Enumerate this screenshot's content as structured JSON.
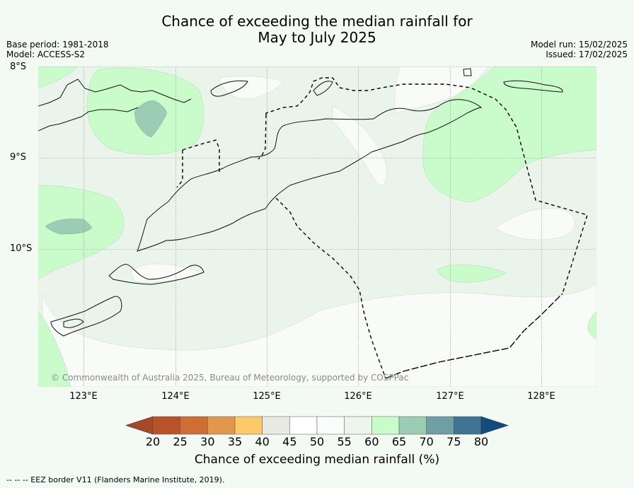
{
  "title": {
    "line1": "Chance of exceeding the median rainfall for",
    "line2": "May to July 2025"
  },
  "meta_left": {
    "base_period": "Base period: 1981-2018",
    "model": "Model: ACCESS-S2"
  },
  "meta_right": {
    "model_run": "Model run: 15/02/2025",
    "issued": "Issued: 17/02/2025"
  },
  "latitude_labels": [
    "8°S",
    "9°S",
    "10°S"
  ],
  "longitude_labels": [
    "123°E",
    "124°E",
    "125°E",
    "126°E",
    "127°E",
    "128°E"
  ],
  "copyright": "© Commonwealth of Australia 2025, Bureau of Meteorology, supported by COSPPac",
  "colorbar": {
    "ticks": [
      "20",
      "25",
      "30",
      "35",
      "40",
      "45",
      "50",
      "55",
      "60",
      "65",
      "70",
      "75",
      "80"
    ],
    "label": "Chance of exceeding median rainfall (%)",
    "colors": [
      "#a8482a",
      "#b85229",
      "#cf6d35",
      "#e3974e",
      "#fdca6a",
      "#e9e9e4",
      "#ffffff",
      "#fafcfa",
      "#edf5ed",
      "#c9fbcb",
      "#9acdb4",
      "#6e9fa5",
      "#3f7495",
      "#114b80"
    ]
  },
  "footer": "--  --  -- EEZ border V11 (Flanders Marine Institute, 2019).",
  "colors": {
    "background": "#f3f9f3",
    "category_55_60": "#eaf4ea",
    "category_50_55": "#f8fbf8",
    "category_60_65": "#c9fbcb",
    "category_65_70": "#9acdb4"
  }
}
